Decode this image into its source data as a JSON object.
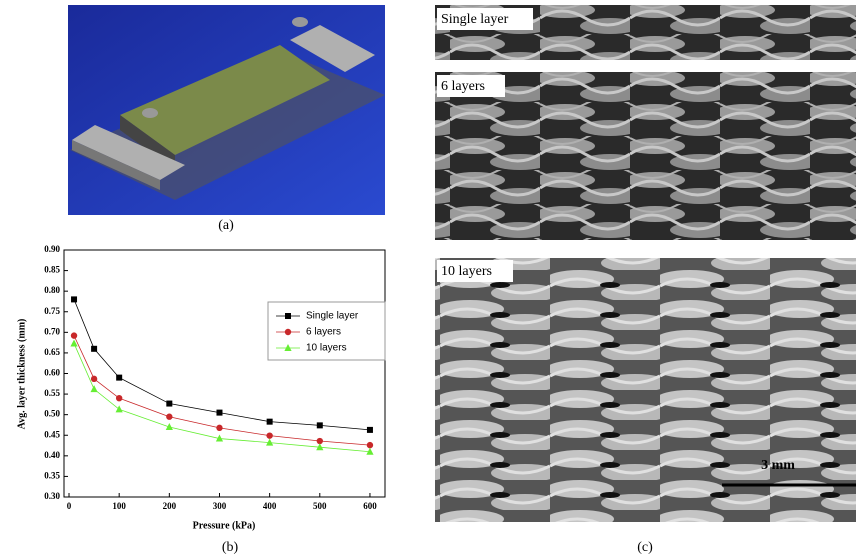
{
  "chart_data": {
    "type": "line",
    "xlabel": "Pressure (kPa)",
    "ylabel": "Avg. layer thickness (mm)",
    "x": [
      10,
      50,
      100,
      200,
      300,
      400,
      500,
      600
    ],
    "series": [
      {
        "name": "Single layer",
        "color": "#000000",
        "marker": "square",
        "values": [
          0.78,
          0.66,
          0.59,
          0.527,
          0.505,
          0.483,
          0.474,
          0.463
        ]
      },
      {
        "name": "6 layers",
        "color": "#c8282a",
        "marker": "circle",
        "values": [
          0.692,
          0.587,
          0.54,
          0.495,
          0.468,
          0.449,
          0.436,
          0.426
        ]
      },
      {
        "name": "10 layers",
        "color": "#66ee33",
        "marker": "triangle",
        "values": [
          0.673,
          0.562,
          0.513,
          0.47,
          0.442,
          0.432,
          0.421,
          0.41
        ]
      }
    ],
    "xlim": [
      -10,
      630
    ],
    "xticks": [
      0,
      100,
      200,
      300,
      400,
      500,
      600
    ],
    "ylim": [
      0.3,
      0.9
    ],
    "yticks": [
      {
        "value": 0.3,
        "label": "0.30"
      },
      {
        "value": 0.35,
        "label": "0.35"
      },
      {
        "value": 0.4,
        "label": "0.40"
      },
      {
        "value": 0.45,
        "label": "0.45"
      },
      {
        "value": 0.5,
        "label": "0.50"
      },
      {
        "value": 0.55,
        "label": "0.55"
      },
      {
        "value": 0.6,
        "label": "0.60"
      },
      {
        "value": 0.65,
        "label": "0.65"
      },
      {
        "value": 0.7,
        "label": "0.70"
      },
      {
        "value": 0.75,
        "label": "0.75"
      },
      {
        "value": 0.8,
        "label": "0.80"
      },
      {
        "value": 0.85,
        "label": "0.85"
      },
      {
        "value": 0.9,
        "label": "0.90"
      }
    ],
    "legend": "right"
  },
  "panels": {
    "a": {
      "caption": "(a)"
    },
    "b": {
      "caption": "(b)"
    },
    "c": {
      "caption": "(c)",
      "labels": [
        "Single layer",
        "6 layers",
        "10 layers"
      ],
      "scale": "3 mm"
    }
  }
}
